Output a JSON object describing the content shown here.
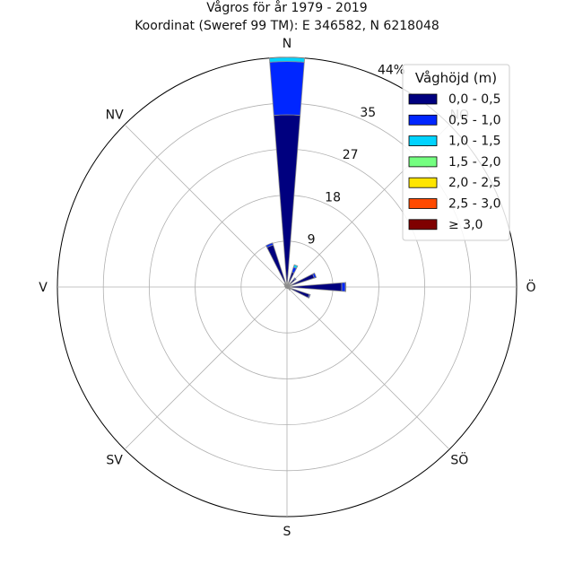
{
  "chart_data": {
    "type": "windrose",
    "title": "Vågros för år 1979 - 2019",
    "subtitle": "Koordinat (Sweref 99 TM): E 346582, N 6218048",
    "directions": [
      "N",
      "NO",
      "Ö",
      "SÖ",
      "S",
      "SV",
      "V",
      "NV"
    ],
    "sector_angles_deg": [
      0,
      22.5,
      45,
      67.5,
      90,
      112.5,
      135,
      157.5,
      180,
      202.5,
      225,
      247.5,
      270,
      292.5,
      315,
      337.5
    ],
    "radial_ticks": [
      "9",
      "18",
      "27",
      "35",
      "44%"
    ],
    "radial_tick_values": [
      8.8,
      17.6,
      26.4,
      35.2,
      44.0
    ],
    "rmax": 44.0,
    "grid": true,
    "legend": {
      "title": "Våghöjd (m)",
      "placement": "top-right",
      "labels": [
        "0,0 - 0,5",
        "0,5 - 1,0",
        "1,0 - 1,5",
        "1,5 - 2,0",
        "2,0 - 2,5",
        "2,5 - 3,0",
        "≥ 3,0"
      ]
    },
    "colors": [
      "#00007f",
      "#0026ff",
      "#00d3ff",
      "#74ff80",
      "#ffe500",
      "#ff4a00",
      "#7f0000"
    ],
    "series": [
      {
        "name": "0,0 - 0,5",
        "values": [
          33.0,
          3.0,
          2.0,
          5.5,
          10.5,
          4.5,
          0.8,
          0.3,
          0.3,
          0.2,
          0.2,
          0.3,
          0.3,
          0.5,
          0.8,
          8.5
        ]
      },
      {
        "name": "0,5 - 1,0",
        "values": [
          10.2,
          1.0,
          0.3,
          0.4,
          0.7,
          0.2,
          0.0,
          0.0,
          0.0,
          0.0,
          0.0,
          0.0,
          0.0,
          0.0,
          0.0,
          0.4
        ]
      },
      {
        "name": "1,0 - 1,5",
        "values": [
          0.8,
          0.5,
          0.0,
          0.0,
          0.1,
          0.0,
          0.0,
          0.0,
          0.0,
          0.0,
          0.0,
          0.0,
          0.0,
          0.0,
          0.0,
          0.0
        ]
      },
      {
        "name": "1,5 - 2,0",
        "values": [
          0,
          0,
          0,
          0,
          0,
          0,
          0,
          0,
          0,
          0,
          0,
          0,
          0,
          0,
          0,
          0
        ]
      },
      {
        "name": "2,0 - 2,5",
        "values": [
          0,
          0,
          0,
          0,
          0,
          0,
          0,
          0,
          0,
          0,
          0,
          0,
          0,
          0,
          0,
          0
        ]
      },
      {
        "name": "2,5 - 3,0",
        "values": [
          0,
          0,
          0,
          0,
          0,
          0,
          0,
          0,
          0,
          0,
          0,
          0,
          0,
          0,
          0,
          0
        ]
      },
      {
        "name": "≥ 3,0",
        "values": [
          0,
          0,
          0,
          0,
          0,
          0,
          0,
          0,
          0,
          0,
          0,
          0,
          0,
          0,
          0,
          0
        ]
      }
    ]
  }
}
